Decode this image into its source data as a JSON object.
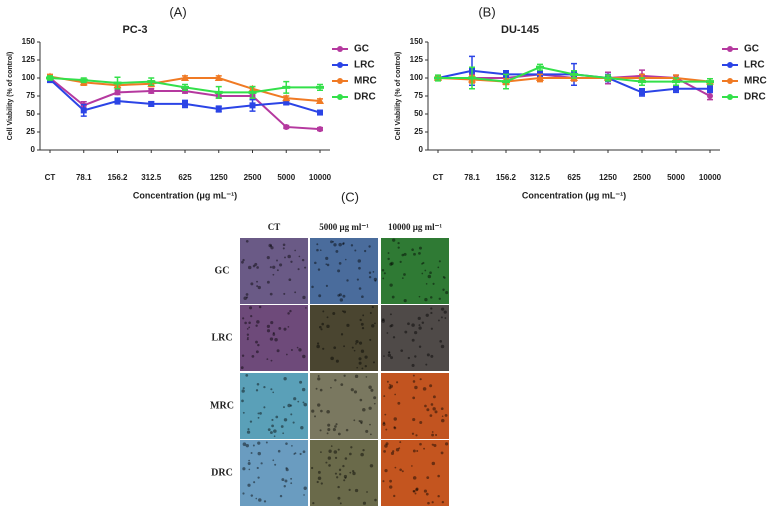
{
  "chart_data": [
    {
      "type": "line",
      "label": "(A)",
      "title": "PC-3",
      "x_label": "Concentration (μg mL⁻¹)",
      "y_label": "Cell Viability (% of control)",
      "categories": [
        "CT",
        "78.1",
        "156.2",
        "312.5",
        "625",
        "1250",
        "2500",
        "5000",
        "10000"
      ],
      "ylim": [
        0,
        150
      ],
      "yticks": [
        0,
        25,
        50,
        75,
        100,
        125,
        150
      ],
      "legend": "right",
      "series": [
        {
          "name": "GC",
          "color": "#b5399f",
          "values": [
            100,
            62,
            80,
            82,
            82,
            75,
            75,
            32,
            29
          ],
          "errors": [
            3,
            5,
            3,
            3,
            3,
            3,
            3,
            2,
            2
          ]
        },
        {
          "name": "LRC",
          "color": "#2b44e6",
          "values": [
            98,
            55,
            68,
            64,
            64,
            57,
            62,
            66,
            52
          ],
          "errors": [
            4,
            8,
            4,
            3,
            5,
            4,
            8,
            3,
            3
          ]
        },
        {
          "name": "MRC",
          "color": "#f07a24",
          "values": [
            102,
            94,
            90,
            92,
            100,
            100,
            85,
            72,
            68
          ],
          "errors": [
            3,
            4,
            3,
            4,
            3,
            3,
            3,
            3,
            3
          ]
        },
        {
          "name": "DRC",
          "color": "#33e04a",
          "values": [
            100,
            97,
            93,
            95,
            87,
            80,
            80,
            87,
            87
          ],
          "errors": [
            3,
            3,
            8,
            5,
            4,
            8,
            8,
            8,
            4
          ]
        }
      ]
    },
    {
      "type": "line",
      "label": "(B)",
      "title": "DU-145",
      "x_label": "Concentration (μg mL⁻¹)",
      "y_label": "Cell Viability (% of control)",
      "categories": [
        "CT",
        "78.1",
        "156.2",
        "312.5",
        "625",
        "1250",
        "2500",
        "5000",
        "10000"
      ],
      "ylim": [
        0,
        150
      ],
      "yticks": [
        0,
        25,
        50,
        75,
        100,
        125,
        150
      ],
      "legend": "right",
      "series": [
        {
          "name": "GC",
          "color": "#b5399f",
          "values": [
            100,
            100,
            100,
            105,
            100,
            100,
            103,
            100,
            75
          ],
          "errors": [
            3,
            5,
            5,
            4,
            4,
            8,
            8,
            4,
            5
          ]
        },
        {
          "name": "LRC",
          "color": "#2b44e6",
          "values": [
            100,
            110,
            105,
            105,
            105,
            100,
            80,
            85,
            85
          ],
          "errors": [
            3,
            20,
            5,
            5,
            15,
            5,
            5,
            5,
            5
          ]
        },
        {
          "name": "MRC",
          "color": "#f07a24",
          "values": [
            100,
            98,
            95,
            100,
            100,
            100,
            100,
            100,
            95
          ],
          "errors": [
            3,
            5,
            4,
            5,
            4,
            4,
            5,
            4,
            4
          ]
        },
        {
          "name": "DRC",
          "color": "#33e04a",
          "values": [
            100,
            100,
            95,
            115,
            105,
            100,
            95,
            95,
            95
          ],
          "errors": [
            4,
            15,
            10,
            4,
            5,
            4,
            5,
            5,
            4
          ]
        }
      ]
    }
  ],
  "panel_c": {
    "label": "(C)",
    "columns": [
      "CT",
      "5000 μg ml⁻¹",
      "10000 μg ml⁻¹"
    ],
    "rows": [
      "GC",
      "LRC",
      "MRC",
      "DRC"
    ]
  }
}
